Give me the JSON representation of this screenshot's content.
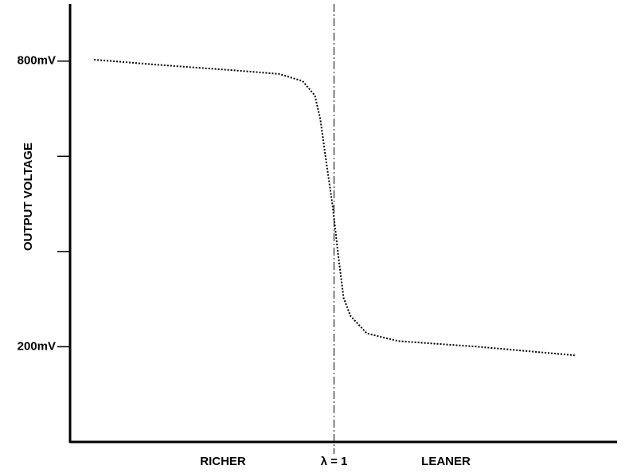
{
  "chart_data": {
    "type": "line",
    "y_label": "OUTPUT VOLTAGE",
    "x_side_labels": [
      "RICHER",
      "LEANER"
    ],
    "reference_line": {
      "x": 1,
      "label": "λ = 1"
    },
    "xlim": [
      0.807,
      1.207
    ],
    "ylim": [
      0,
      920
    ],
    "yticks": [
      {
        "value": 200,
        "label": "200mV"
      },
      {
        "value": 400,
        "label": null
      },
      {
        "value": 600,
        "label": null
      },
      {
        "value": 800,
        "label": "800mV"
      }
    ],
    "x": [
      0.8245,
      0.872,
      0.93,
      0.96,
      0.977,
      0.986,
      0.99,
      0.994,
      0.999,
      1.003,
      1.007,
      1.012,
      1.024,
      1.047,
      1.105,
      1.176
    ],
    "values": [
      803,
      792,
      780,
      773,
      758,
      728,
      678,
      595,
      495,
      395,
      303,
      265,
      228,
      212,
      200,
      182
    ],
    "color": "#000000"
  }
}
